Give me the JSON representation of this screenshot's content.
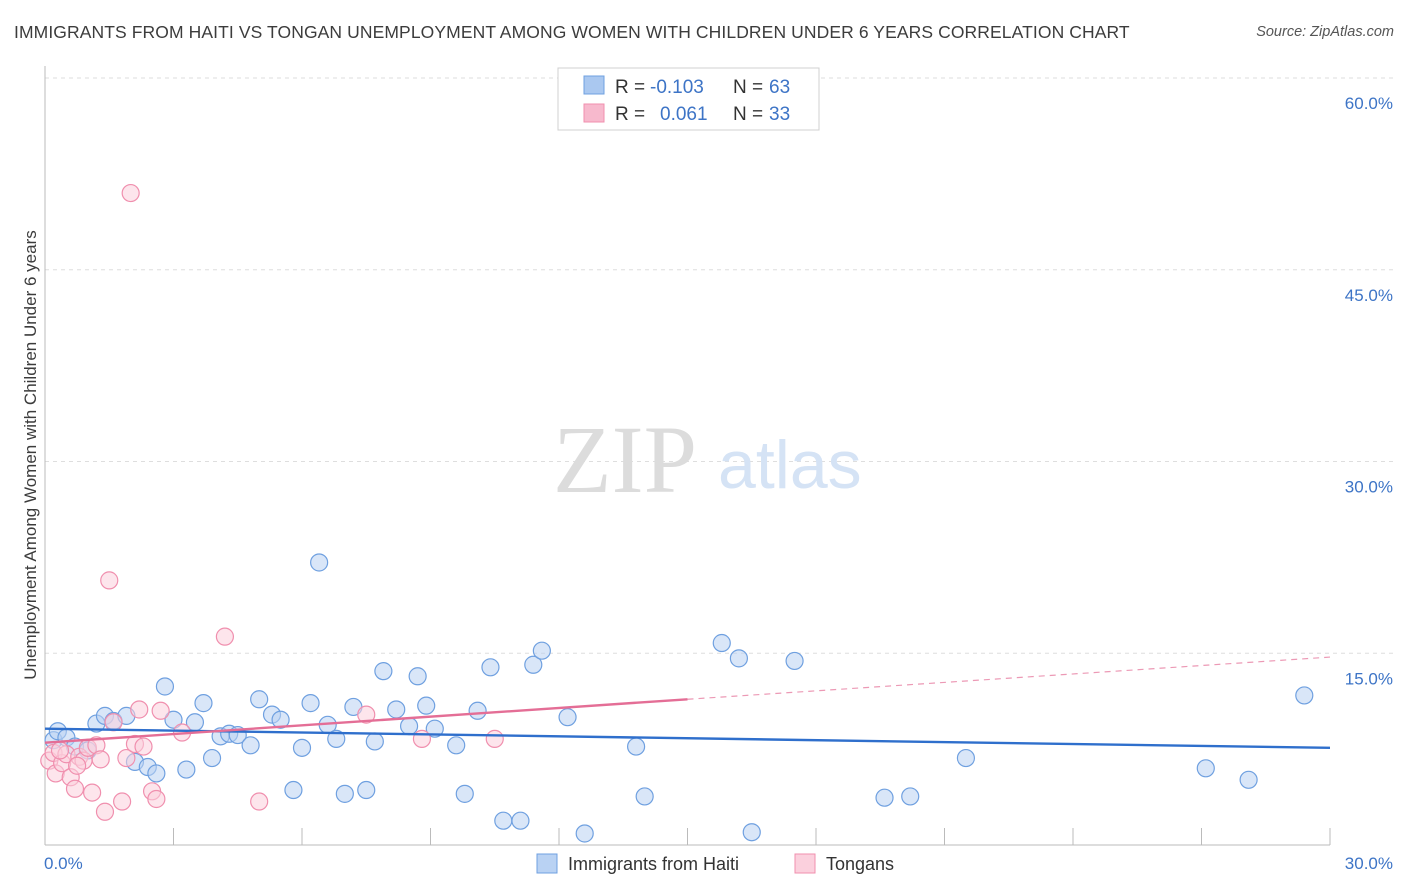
{
  "title": "IMMIGRANTS FROM HAITI VS TONGAN UNEMPLOYMENT AMONG WOMEN WITH CHILDREN UNDER 6 YEARS CORRELATION CHART",
  "source": "Source: ZipAtlas.com",
  "watermark": {
    "zip": "ZIP",
    "atlas": "atlas"
  },
  "legend": {
    "r_label": "R =",
    "n_label": "N =",
    "rows": [
      {
        "r": "-0.103",
        "n": "63",
        "color": "#aac8f0"
      },
      {
        "r": "0.061",
        "n": "33",
        "color": "#f7b9cd"
      }
    ]
  },
  "chart_data": {
    "type": "scatter",
    "title": "IMMIGRANTS FROM HAITI VS TONGAN UNEMPLOYMENT AMONG WOMEN WITH CHILDREN UNDER 6 YEARS CORRELATION CHART",
    "xlabel": "",
    "ylabel": "Unemployment Among Women with Children Under 6 years",
    "xlim": [
      0,
      30
    ],
    "ylim": [
      0,
      60
    ],
    "x_tick_labels": [
      "0.0%",
      "30.0%"
    ],
    "y_ticks": [
      15,
      30,
      45,
      60
    ],
    "y_tick_labels": [
      "15.0%",
      "30.0%",
      "45.0%",
      "60.0%"
    ],
    "grid": true,
    "series": [
      {
        "name": "Immigrants from Haiti",
        "color": "#6fa0e0",
        "fill": "#b9d2f3",
        "trend": {
          "x": [
            0,
            30
          ],
          "y": [
            9.1,
            7.6
          ],
          "color": "#2f6fcc"
        },
        "points": [
          [
            0.2,
            8.2
          ],
          [
            0.3,
            8.9
          ],
          [
            0.5,
            8.4
          ],
          [
            0.7,
            7.7
          ],
          [
            1.0,
            7.4
          ],
          [
            1.2,
            9.5
          ],
          [
            1.4,
            10.1
          ],
          [
            1.6,
            9.7
          ],
          [
            1.9,
            10.1
          ],
          [
            2.1,
            6.5
          ],
          [
            2.4,
            6.1
          ],
          [
            2.6,
            5.6
          ],
          [
            2.8,
            12.4
          ],
          [
            3.0,
            9.8
          ],
          [
            3.3,
            5.9
          ],
          [
            3.5,
            9.6
          ],
          [
            3.7,
            11.1
          ],
          [
            3.9,
            6.8
          ],
          [
            4.1,
            8.5
          ],
          [
            4.3,
            8.7
          ],
          [
            4.5,
            8.6
          ],
          [
            4.8,
            7.8
          ],
          [
            5.0,
            11.4
          ],
          [
            5.3,
            10.2
          ],
          [
            5.5,
            9.8
          ],
          [
            5.8,
            4.3
          ],
          [
            6.0,
            7.6
          ],
          [
            6.2,
            11.1
          ],
          [
            6.4,
            22.1
          ],
          [
            6.6,
            9.4
          ],
          [
            6.8,
            8.3
          ],
          [
            7.0,
            4.0
          ],
          [
            7.2,
            10.8
          ],
          [
            7.5,
            4.3
          ],
          [
            7.7,
            8.1
          ],
          [
            7.9,
            13.6
          ],
          [
            8.2,
            10.6
          ],
          [
            8.5,
            9.3
          ],
          [
            8.7,
            13.2
          ],
          [
            8.9,
            10.9
          ],
          [
            9.1,
            9.1
          ],
          [
            9.6,
            7.8
          ],
          [
            9.8,
            4.0
          ],
          [
            10.1,
            10.5
          ],
          [
            10.4,
            13.9
          ],
          [
            10.7,
            1.9
          ],
          [
            11.1,
            1.9
          ],
          [
            11.4,
            14.1
          ],
          [
            11.6,
            15.2
          ],
          [
            12.2,
            10.0
          ],
          [
            12.6,
            0.9
          ],
          [
            13.8,
            7.7
          ],
          [
            14.0,
            3.8
          ],
          [
            15.8,
            15.8
          ],
          [
            16.2,
            14.6
          ],
          [
            16.5,
            1.0
          ],
          [
            17.5,
            14.4
          ],
          [
            19.6,
            3.7
          ],
          [
            20.2,
            3.8
          ],
          [
            21.5,
            6.8
          ],
          [
            27.1,
            6.0
          ],
          [
            28.1,
            5.1
          ],
          [
            29.4,
            11.7
          ]
        ]
      },
      {
        "name": "Tongans",
        "color": "#f08fae",
        "fill": "#fbd0dd",
        "trend": {
          "x": [
            0,
            15
          ],
          "y": [
            8.0,
            11.4
          ],
          "color": "#e46e96"
        },
        "trend_extension": {
          "x": [
            15,
            30
          ],
          "y": [
            11.4,
            14.7
          ]
        },
        "points": [
          [
            0.1,
            6.6
          ],
          [
            0.2,
            7.2
          ],
          [
            0.25,
            5.6
          ],
          [
            0.4,
            6.4
          ],
          [
            0.5,
            7.1
          ],
          [
            0.6,
            5.3
          ],
          [
            0.7,
            4.4
          ],
          [
            0.8,
            6.9
          ],
          [
            0.9,
            6.6
          ],
          [
            1.0,
            7.6
          ],
          [
            1.1,
            4.1
          ],
          [
            1.2,
            7.8
          ],
          [
            1.3,
            6.7
          ],
          [
            1.4,
            2.6
          ],
          [
            1.5,
            20.7
          ],
          [
            1.6,
            9.6
          ],
          [
            1.8,
            3.4
          ],
          [
            1.9,
            6.8
          ],
          [
            2.0,
            51.0
          ],
          [
            2.1,
            7.9
          ],
          [
            2.2,
            10.6
          ],
          [
            2.3,
            7.7
          ],
          [
            2.5,
            4.2
          ],
          [
            2.6,
            3.6
          ],
          [
            2.7,
            10.5
          ],
          [
            3.2,
            8.8
          ],
          [
            4.2,
            16.3
          ],
          [
            5.0,
            3.4
          ],
          [
            7.5,
            10.2
          ],
          [
            8.8,
            8.3
          ],
          [
            10.5,
            8.3
          ],
          [
            0.35,
            7.4
          ],
          [
            0.75,
            6.2
          ]
        ]
      }
    ]
  },
  "bottom_legend": [
    {
      "label": "Immigrants from Haiti",
      "color": "#b9d2f3",
      "stroke": "#6fa0e0"
    },
    {
      "label": "Tongans",
      "color": "#fbd0dd",
      "stroke": "#f08fae"
    }
  ]
}
